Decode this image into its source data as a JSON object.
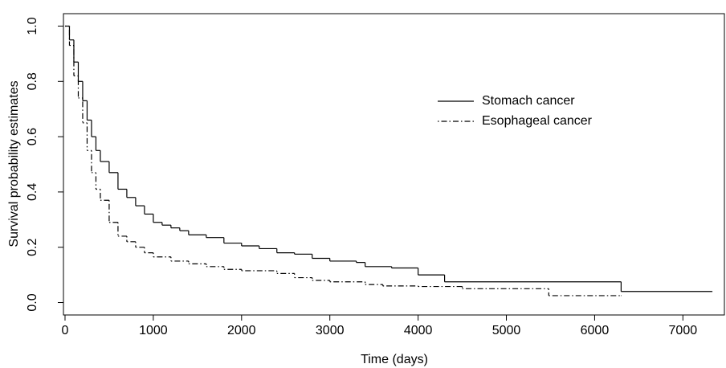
{
  "chart_data": {
    "type": "step",
    "xlabel": "Time (days)",
    "ylabel": "Survival probability estimates",
    "xlim": [
      -18,
      7470
    ],
    "ylim": [
      -0.045,
      1.045
    ],
    "xticks": [
      0,
      1000,
      2000,
      3000,
      4000,
      5000,
      6000,
      7000
    ],
    "yticks": [
      {
        "value": 0,
        "label": "0.0"
      },
      0.2,
      0.4,
      0.6,
      0.8,
      {
        "value": 1,
        "label": "1.0"
      }
    ],
    "legend": "top-right",
    "series": [
      {
        "name": "Stomach cancer",
        "color": "#000000",
        "dash": "solid",
        "x": [
          0,
          50,
          100,
          150,
          200,
          250,
          300,
          350,
          400,
          500,
          600,
          700,
          800,
          900,
          1000,
          1100,
          1200,
          1300,
          1400,
          1600,
          1800,
          2000,
          2200,
          2400,
          2600,
          2800,
          3000,
          3300,
          3400,
          3700,
          4000,
          4300,
          6300,
          7330
        ],
        "values": [
          1.0,
          0.95,
          0.87,
          0.8,
          0.73,
          0.66,
          0.6,
          0.55,
          0.51,
          0.47,
          0.41,
          0.38,
          0.35,
          0.32,
          0.29,
          0.28,
          0.27,
          0.26,
          0.245,
          0.235,
          0.215,
          0.205,
          0.195,
          0.18,
          0.175,
          0.16,
          0.15,
          0.145,
          0.13,
          0.125,
          0.1,
          0.075,
          0.04,
          0.04
        ]
      },
      {
        "name": "Esophageal cancer",
        "color": "#000000",
        "dash": "dotdash",
        "x": [
          0,
          50,
          100,
          150,
          200,
          250,
          300,
          350,
          400,
          500,
          600,
          700,
          800,
          900,
          1000,
          1200,
          1400,
          1600,
          1800,
          2000,
          2400,
          2600,
          2800,
          3000,
          3400,
          3600,
          4000,
          4500,
          5480,
          6300
        ],
        "values": [
          1.0,
          0.93,
          0.82,
          0.74,
          0.65,
          0.55,
          0.47,
          0.41,
          0.37,
          0.29,
          0.24,
          0.22,
          0.2,
          0.18,
          0.165,
          0.15,
          0.14,
          0.13,
          0.12,
          0.115,
          0.105,
          0.09,
          0.08,
          0.075,
          0.065,
          0.06,
          0.058,
          0.05,
          0.025,
          0.025
        ]
      }
    ]
  }
}
